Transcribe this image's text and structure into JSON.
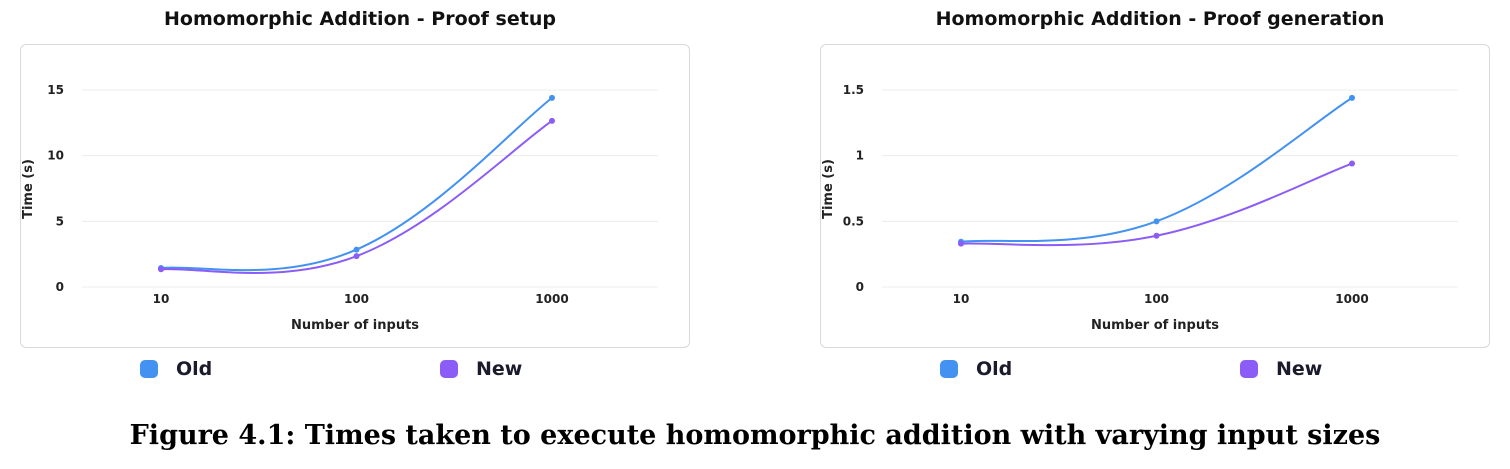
{
  "chart_data": [
    {
      "type": "line",
      "title": "Homomorphic Addition - Proof setup",
      "xlabel": "Number of inputs",
      "ylabel": "Time (s)",
      "x_scale": "log",
      "categories": [
        "10",
        "100",
        "1000"
      ],
      "x": [
        10,
        100,
        1000
      ],
      "yticks": [
        "0",
        "5",
        "10",
        "15"
      ],
      "ylim": [
        0,
        15
      ],
      "grid": true,
      "legend_position": "bottom",
      "series": [
        {
          "name": "Old",
          "color": "#4392f1",
          "values": [
            1.45,
            2.85,
            14.4
          ]
        },
        {
          "name": "New",
          "color": "#8b5cf6",
          "values": [
            1.35,
            2.35,
            12.65
          ]
        }
      ]
    },
    {
      "type": "line",
      "title": "Homomorphic Addition - Proof generation",
      "xlabel": "Number of inputs",
      "ylabel": "Time (s)",
      "x_scale": "log",
      "categories": [
        "10",
        "100",
        "1000"
      ],
      "x": [
        10,
        100,
        1000
      ],
      "yticks": [
        "0",
        "0.5",
        "1",
        "1.5"
      ],
      "ylim": [
        0,
        1.5
      ],
      "grid": true,
      "legend_position": "bottom",
      "series": [
        {
          "name": "Old",
          "color": "#4392f1",
          "values": [
            0.345,
            0.5,
            1.44
          ]
        },
        {
          "name": "New",
          "color": "#8b5cf6",
          "values": [
            0.33,
            0.39,
            0.94
          ]
        }
      ]
    }
  ],
  "caption": "Figure 4.1: Times taken to execute homomorphic addition with varying input sizes"
}
